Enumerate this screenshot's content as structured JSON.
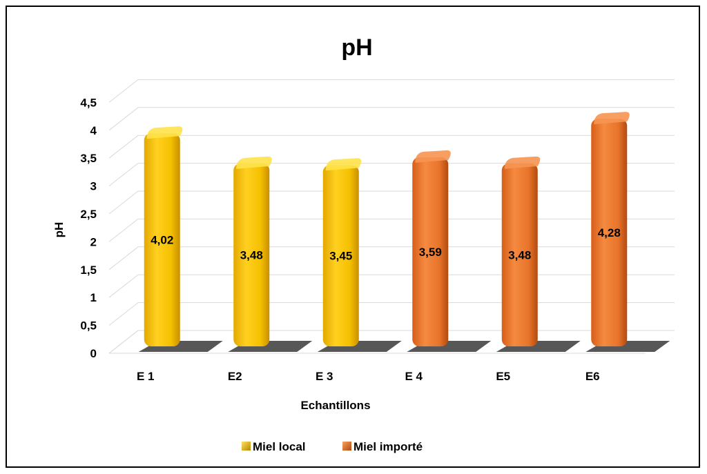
{
  "chart_data": {
    "type": "bar",
    "title": "pH",
    "xlabel": "Echantillons",
    "ylabel": "pH",
    "categories": [
      "E 1",
      "E2",
      "E 3",
      "E 4",
      "E5",
      "E6"
    ],
    "values": [
      4.02,
      3.48,
      3.45,
      3.59,
      3.48,
      4.28
    ],
    "value_labels": [
      "4,02",
      "3,48",
      "3,45",
      "3,59",
      "3,48",
      "4,28"
    ],
    "group": [
      0,
      0,
      0,
      1,
      1,
      1
    ],
    "series": [
      {
        "name": "Miel local",
        "color": "#F5C400"
      },
      {
        "name": "Miel importé",
        "color": "#E8742A"
      }
    ],
    "ylim": [
      0,
      4.5
    ],
    "yticks": [
      "0",
      "0,5",
      "1",
      "1,5",
      "2",
      "2,5",
      "3",
      "3,5",
      "4",
      "4,5"
    ],
    "grid": true,
    "legend_position": "bottom"
  }
}
